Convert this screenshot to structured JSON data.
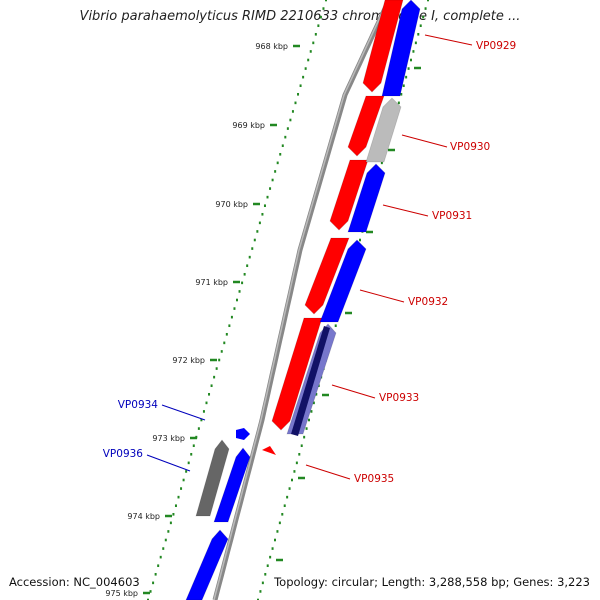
{
  "title": "Vibrio parahaemolyticus RIMD 2210633 chromosome I, complete ...",
  "footer": {
    "accession": "Accession: NC_004603",
    "summary": "Topology: circular; Length: 3,288,558 bp; Genes: 3,223"
  },
  "colors": {
    "forward_gene": "#ff0000",
    "reverse_gene": "#0000ff",
    "pseudo_gene": "#bbbbbb",
    "dark_gene": "#666666",
    "purple_gene": "#7777cc",
    "backbone": "#888888",
    "tick": "#228822",
    "label_red": "#cc0000",
    "label_blue": "#0000bb"
  },
  "ticks": [
    {
      "label": "968 kbp"
    },
    {
      "label": "969 kbp"
    },
    {
      "label": "970 kbp"
    },
    {
      "label": "971 kbp"
    },
    {
      "label": "972 kbp"
    },
    {
      "label": "973 kbp"
    },
    {
      "label": "974 kbp"
    },
    {
      "label": "975 kbp"
    }
  ],
  "gene_labels": [
    {
      "text": "VP0929",
      "color": "#cc0000"
    },
    {
      "text": "VP0930",
      "color": "#cc0000"
    },
    {
      "text": "VP0931",
      "color": "#cc0000"
    },
    {
      "text": "VP0932",
      "color": "#cc0000"
    },
    {
      "text": "VP0933",
      "color": "#cc0000"
    },
    {
      "text": "VP0935",
      "color": "#cc0000"
    },
    {
      "text": "VP0934",
      "color": "#0000bb"
    },
    {
      "text": "VP0936",
      "color": "#0000bb"
    }
  ]
}
